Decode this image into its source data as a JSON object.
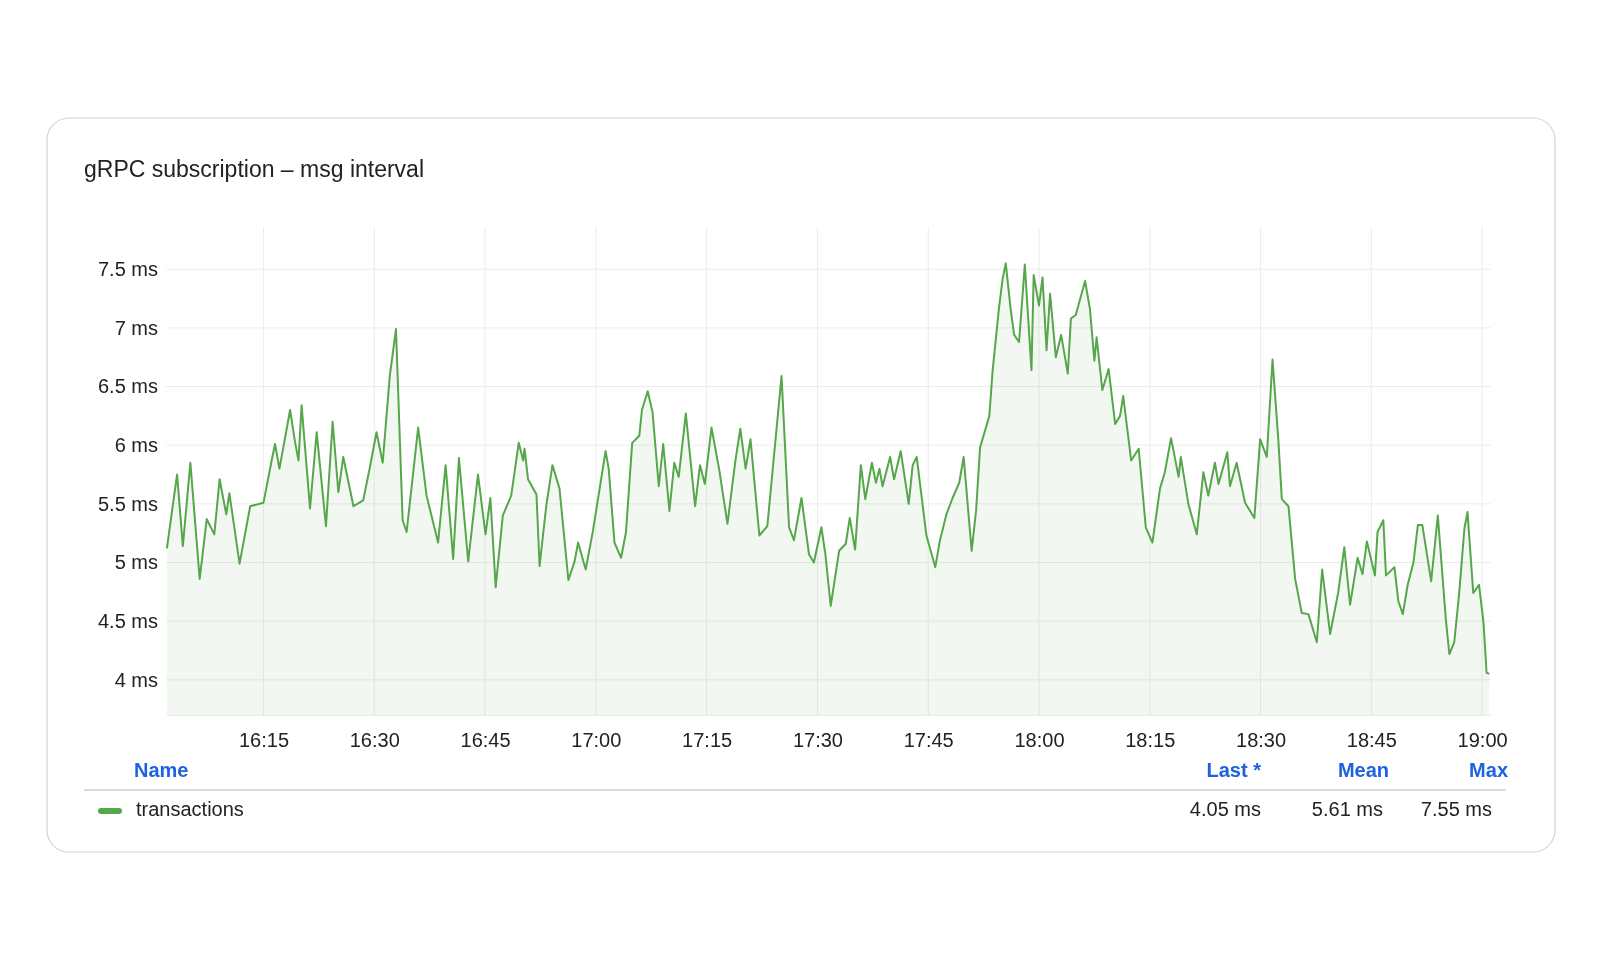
{
  "chart_data": {
    "type": "area",
    "title": "gRPC subscription – msg interval",
    "x": [
      16.032,
      16.055,
      16.068,
      16.085,
      16.106,
      16.122,
      16.139,
      16.151,
      16.166,
      16.173,
      16.196,
      16.22,
      16.25,
      16.269,
      16.276,
      16.286,
      16.31,
      16.321,
      16.329,
      16.336,
      16.355,
      16.37,
      16.391,
      16.406,
      16.419,
      16.43,
      16.453,
      16.475,
      16.49,
      16.505,
      16.519,
      16.535,
      16.549,
      16.564,
      16.573,
      16.599,
      16.618,
      16.644,
      16.661,
      16.678,
      16.691,
      16.712,
      16.734,
      16.751,
      16.762,
      16.774,
      16.79,
      16.809,
      16.826,
      16.836,
      16.839,
      16.847,
      16.866,
      16.873,
      16.888,
      16.902,
      16.918,
      16.938,
      16.952,
      16.96,
      16.977,
      16.993,
      17.022,
      17.029,
      17.042,
      17.057,
      17.068,
      17.082,
      17.098,
      17.104,
      17.117,
      17.128,
      17.142,
      17.152,
      17.166,
      17.177,
      17.187,
      17.203,
      17.224,
      17.235,
      17.246,
      17.261,
      17.278,
      17.297,
      17.315,
      17.326,
      17.338,
      17.349,
      17.369,
      17.387,
      17.419,
      17.436,
      17.447,
      17.464,
      17.481,
      17.492,
      17.509,
      17.518,
      17.53,
      17.549,
      17.564,
      17.573,
      17.585,
      17.598,
      17.608,
      17.623,
      17.632,
      17.64,
      17.647,
      17.664,
      17.673,
      17.688,
      17.706,
      17.715,
      17.724,
      17.746,
      17.766,
      17.776,
      17.791,
      17.805,
      17.82,
      17.83,
      17.848,
      17.858,
      17.867,
      17.888,
      17.895,
      17.91,
      17.918,
      17.925,
      17.936,
      17.944,
      17.955,
      17.968,
      17.983,
      17.988,
      18.0,
      18.008,
      18.017,
      18.025,
      18.038,
      18.05,
      18.065,
      18.072,
      18.083,
      18.104,
      18.115,
      18.125,
      18.13,
      18.143,
      18.157,
      18.172,
      18.183,
      18.19,
      18.208,
      18.225,
      18.241,
      18.256,
      18.273,
      18.284,
      18.298,
      18.315,
      18.32,
      18.337,
      18.356,
      18.371,
      18.382,
      18.397,
      18.405,
      18.425,
      18.431,
      18.446,
      18.465,
      18.486,
      18.499,
      18.514,
      18.527,
      18.54,
      18.548,
      18.563,
      18.578,
      18.593,
      18.608,
      18.627,
      18.639,
      18.657,
      18.675,
      18.689,
      18.702,
      18.719,
      18.73,
      18.74,
      18.758,
      18.764,
      18.777,
      18.783,
      18.802,
      18.811,
      18.821,
      18.832,
      18.845,
      18.855,
      18.865,
      18.885,
      18.9,
      18.918,
      18.926,
      18.937,
      18.948,
      18.96,
      18.967,
      18.98,
      18.993,
      19.003,
      19.01,
      19.016
    ],
    "series": [
      {
        "name": "transactions",
        "color": "#56a64b",
        "values": [
          5.12,
          5.75,
          5.14,
          5.85,
          4.86,
          5.37,
          5.24,
          5.71,
          5.41,
          5.59,
          4.99,
          5.48,
          5.51,
          5.88,
          6.01,
          5.8,
          6.3,
          6.03,
          5.87,
          6.34,
          5.46,
          6.11,
          5.31,
          6.2,
          5.6,
          5.9,
          5.48,
          5.53,
          5.81,
          6.11,
          5.85,
          6.59,
          6.99,
          5.36,
          5.26,
          6.15,
          5.57,
          5.17,
          5.83,
          5.03,
          5.89,
          5.01,
          5.75,
          5.24,
          5.55,
          4.79,
          5.4,
          5.57,
          6.02,
          5.87,
          5.97,
          5.71,
          5.58,
          4.97,
          5.48,
          5.83,
          5.63,
          4.85,
          5.01,
          5.17,
          4.94,
          5.26,
          5.95,
          5.8,
          5.17,
          5.04,
          5.26,
          6.02,
          6.08,
          6.3,
          6.46,
          6.28,
          5.65,
          6.01,
          5.44,
          5.85,
          5.73,
          6.27,
          5.48,
          5.83,
          5.67,
          6.15,
          5.8,
          5.33,
          5.87,
          6.14,
          5.8,
          6.05,
          5.23,
          5.31,
          6.59,
          5.3,
          5.19,
          5.55,
          5.07,
          5.0,
          5.3,
          5.07,
          4.63,
          5.1,
          5.16,
          5.38,
          5.11,
          5.83,
          5.54,
          5.85,
          5.68,
          5.8,
          5.65,
          5.9,
          5.71,
          5.95,
          5.5,
          5.83,
          5.9,
          5.23,
          4.96,
          5.18,
          5.41,
          5.55,
          5.68,
          5.9,
          5.1,
          5.44,
          5.98,
          6.25,
          6.62,
          7.18,
          7.42,
          7.55,
          7.16,
          6.94,
          6.88,
          7.54,
          6.64,
          7.45,
          7.19,
          7.43,
          6.81,
          7.29,
          6.75,
          6.94,
          6.61,
          7.08,
          7.11,
          7.4,
          7.16,
          6.72,
          6.92,
          6.47,
          6.65,
          6.18,
          6.25,
          6.42,
          5.87,
          5.97,
          5.3,
          5.17,
          5.63,
          5.77,
          6.06,
          5.73,
          5.9,
          5.5,
          5.24,
          5.77,
          5.57,
          5.85,
          5.67,
          5.94,
          5.65,
          5.85,
          5.51,
          5.38,
          6.05,
          5.9,
          6.73,
          6.05,
          5.54,
          5.48,
          4.86,
          4.57,
          4.56,
          4.32,
          4.94,
          4.39,
          4.74,
          5.13,
          4.64,
          5.04,
          4.9,
          5.18,
          4.89,
          5.26,
          5.36,
          4.89,
          4.96,
          4.67,
          4.56,
          4.81,
          5.0,
          5.32,
          5.32,
          4.84,
          5.4,
          4.52,
          4.22,
          4.32,
          4.73,
          5.29,
          5.43,
          4.74,
          4.81,
          4.49,
          4.06,
          4.05
        ]
      }
    ],
    "xlim": [
      16.03,
      19.02
    ],
    "xticks": [
      {
        "value": 16.25,
        "label": "16:15"
      },
      {
        "value": 16.5,
        "label": "16:30"
      },
      {
        "value": 16.75,
        "label": "16:45"
      },
      {
        "value": 17,
        "label": "17:00"
      },
      {
        "value": 17.25,
        "label": "17:15"
      },
      {
        "value": 17.5,
        "label": "17:30"
      },
      {
        "value": 17.75,
        "label": "17:45"
      },
      {
        "value": 18,
        "label": "18:00"
      },
      {
        "value": 18.25,
        "label": "18:15"
      },
      {
        "value": 18.5,
        "label": "18:30"
      },
      {
        "value": 18.75,
        "label": "18:45"
      },
      {
        "value": 19,
        "label": "19:00"
      }
    ],
    "ylim": [
      3.7,
      7.86
    ],
    "yticks": [
      {
        "value": 4,
        "label": "4 ms"
      },
      {
        "value": 4.5,
        "label": "4.5 ms"
      },
      {
        "value": 5,
        "label": "5 ms"
      },
      {
        "value": 5.5,
        "label": "5.5 ms"
      },
      {
        "value": 6,
        "label": "6 ms"
      },
      {
        "value": 6.5,
        "label": "6.5 ms"
      },
      {
        "value": 7,
        "label": "7 ms"
      },
      {
        "value": 7.5,
        "label": "7.5 ms"
      }
    ],
    "grid": true,
    "legend": "bottom",
    "annotations": [
      "Name",
      "Last *",
      "Mean",
      "Max",
      "4.05 ms",
      "5.61 ms",
      "7.55 ms"
    ]
  }
}
